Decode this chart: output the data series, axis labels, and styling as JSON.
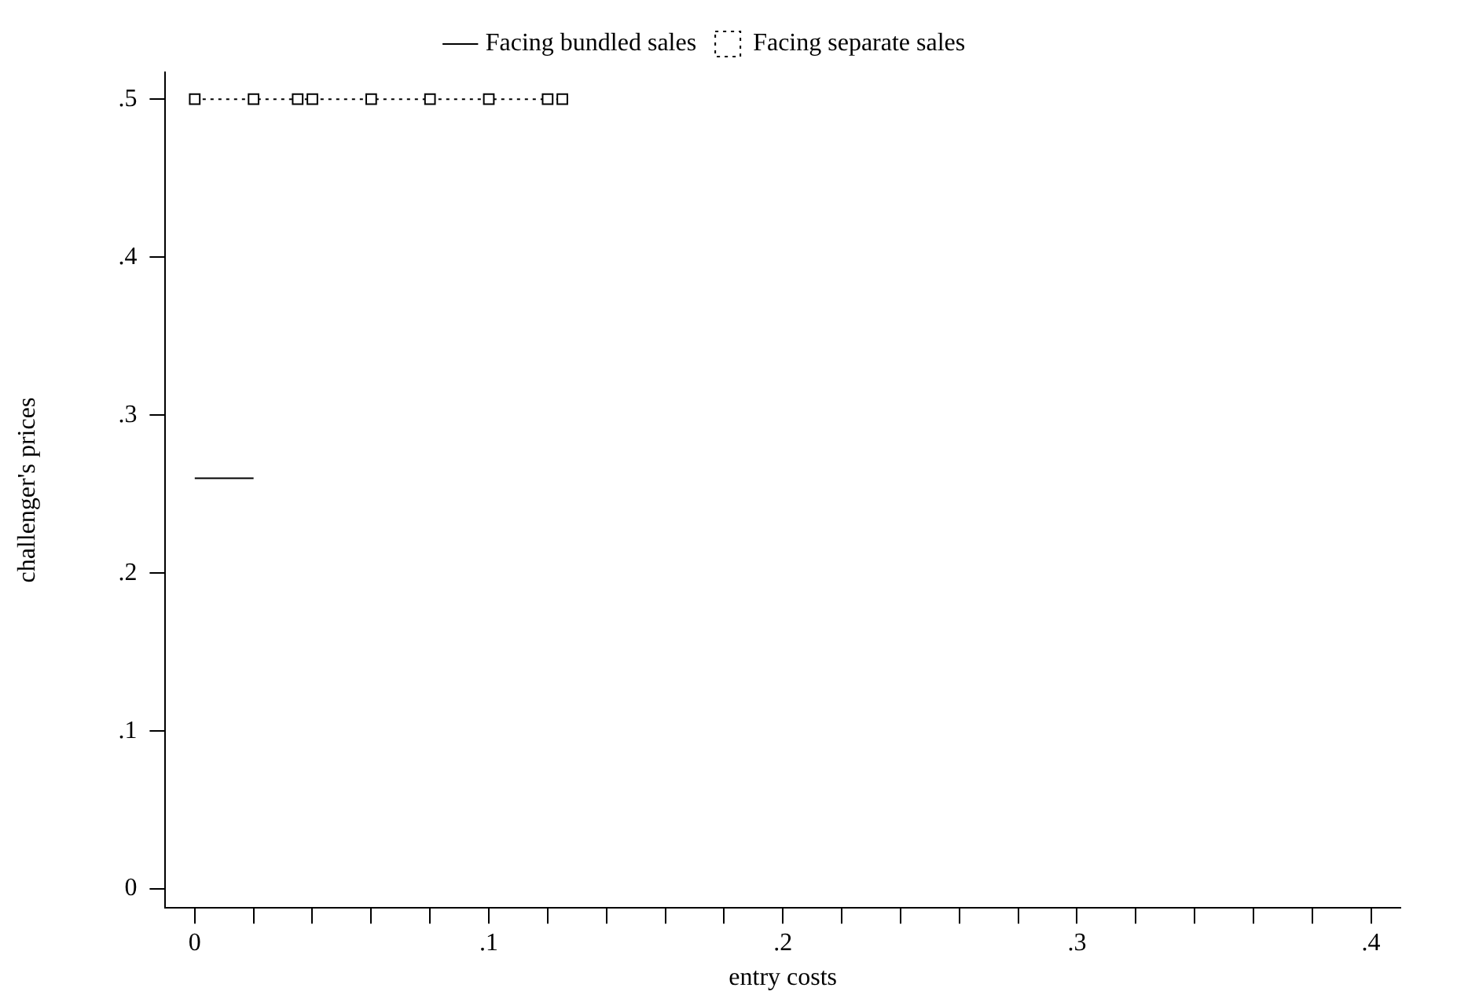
{
  "chart_data": {
    "type": "line",
    "xlabel": "entry costs",
    "ylabel": "challenger's prices",
    "xlim": [
      -0.01,
      0.41
    ],
    "ylim": [
      -0.012,
      0.517
    ],
    "xticks": [
      {
        "value": 0,
        "label": "0"
      },
      {
        "value": 0.02,
        "label": null
      },
      {
        "value": 0.04,
        "label": null
      },
      {
        "value": 0.06,
        "label": null
      },
      {
        "value": 0.08,
        "label": null
      },
      {
        "value": 0.1,
        "label": ".1"
      },
      {
        "value": 0.12,
        "label": null
      },
      {
        "value": 0.14,
        "label": null
      },
      {
        "value": 0.16,
        "label": null
      },
      {
        "value": 0.18,
        "label": null
      },
      {
        "value": 0.2,
        "label": ".2"
      },
      {
        "value": 0.22,
        "label": null
      },
      {
        "value": 0.24,
        "label": null
      },
      {
        "value": 0.26,
        "label": null
      },
      {
        "value": 0.28,
        "label": null
      },
      {
        "value": 0.3,
        "label": ".3"
      },
      {
        "value": 0.32,
        "label": null
      },
      {
        "value": 0.34,
        "label": null
      },
      {
        "value": 0.36,
        "label": null
      },
      {
        "value": 0.38,
        "label": null
      },
      {
        "value": 0.4,
        "label": ".4"
      }
    ],
    "yticks": [
      {
        "value": 0,
        "label": "0"
      },
      {
        "value": 0.1,
        "label": ".1"
      },
      {
        "value": 0.2,
        "label": ".2"
      },
      {
        "value": 0.3,
        "label": ".3"
      },
      {
        "value": 0.4,
        "label": ".4"
      },
      {
        "value": 0.5,
        "label": ".5"
      }
    ],
    "grid": false,
    "legend": "top",
    "series": [
      {
        "name": "Facing bundled sales",
        "color": "#000000",
        "x": [
          0,
          0.02
        ],
        "values": [
          0.26,
          0.26
        ],
        "marker": "none",
        "line_style": "solid"
      },
      {
        "name": "Facing separate sales",
        "color": "#000000",
        "x": [
          0,
          0.02,
          0.035,
          0.04,
          0.06,
          0.08,
          0.1,
          0.12,
          0.125
        ],
        "values": [
          0.5,
          0.5,
          0.5,
          0.5,
          0.5,
          0.5,
          0.5,
          0.5,
          0.5
        ],
        "marker": "square",
        "line_style": "dotted"
      }
    ]
  }
}
